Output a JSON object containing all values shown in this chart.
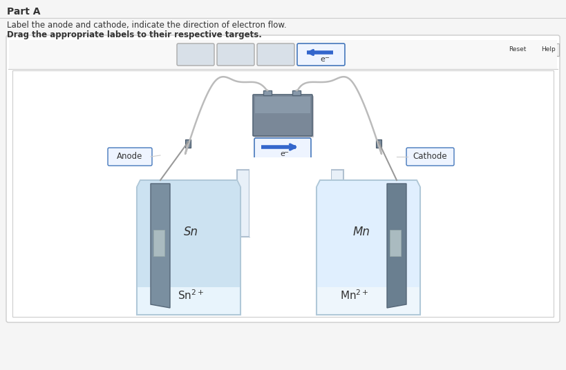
{
  "title": "Part A",
  "instruction1": "Label the anode and cathode, indicate the direction of electron flow.",
  "instruction2": "Drag the appropriate labels to their respective targets.",
  "bg_color": "#f5f5f5",
  "panel_bg": "#ffffff",
  "inner_bg": "#ffffff",
  "top_strip_bg": "#f0f0f0",
  "beaker_water_left": "#c8dff0",
  "beaker_water_right": "#ddeeff",
  "beaker_body_color": "#e8f4fc",
  "beaker_border": "#b0c8d8",
  "electrode_color_left": "#7a8fa0",
  "electrode_color_right": "#6a7f90",
  "battery_body": "#7a8898",
  "battery_top": "#8899aa",
  "battery_terminal": "#556677",
  "label_box_fill": "#eef4ff",
  "label_box_border": "#4477bb",
  "drag_box_fill": "#d8e0e8",
  "drag_box_border": "#aaaaaa",
  "arrow_color": "#3366cc",
  "wire_color": "#bbbbbb",
  "wire_dark": "#999999",
  "utube_fill": "#e8f0f8",
  "utube_border": "#b0c0d0",
  "text_color": "#333333",
  "button_bg": "#f0f0f0",
  "button_border": "#aaaaaa",
  "sep_line": "#cccccc",
  "anode_label": "Anode",
  "cathode_label": "Cathode",
  "left_electrode_label": "Sn",
  "right_electrode_label": "Mn",
  "left_ion": "Sn",
  "left_ion_charge": "2+",
  "right_ion": "Mn",
  "right_ion_charge": "2+",
  "e_symbol": "e",
  "e_minus": "−"
}
